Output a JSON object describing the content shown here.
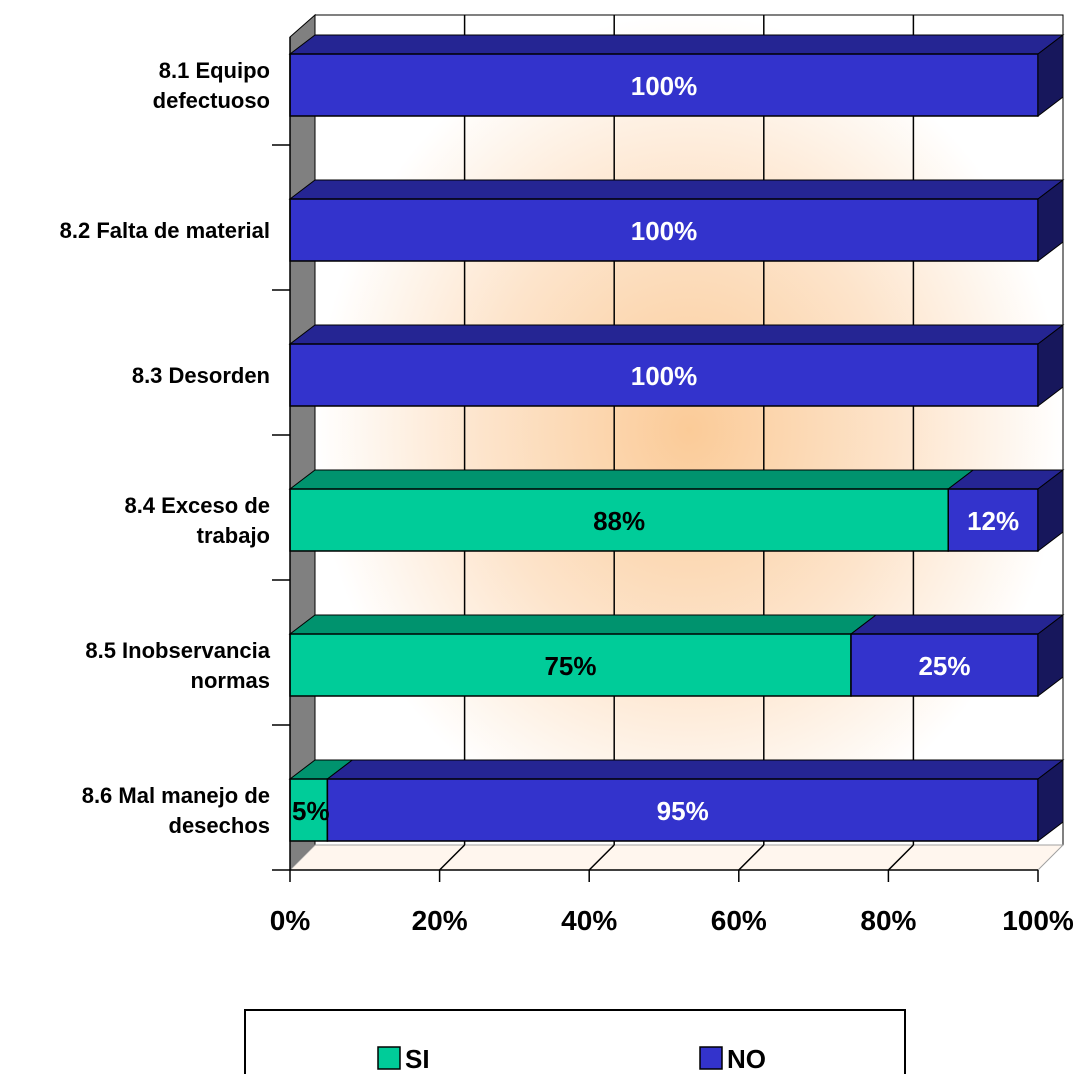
{
  "chart_data": {
    "type": "bar",
    "orientation": "horizontal",
    "stacked": "percent",
    "three_d": true,
    "categories": [
      [
        "8.1 Equipo",
        "defectuoso"
      ],
      [
        "8.2 Falta de material"
      ],
      [
        "8.3 Desorden"
      ],
      [
        "8.4 Exceso de",
        "trabajo"
      ],
      [
        "8.5 Inobservancia",
        "normas"
      ],
      [
        "8.6 Mal manejo de",
        "desechos"
      ]
    ],
    "series": [
      {
        "name": "SI",
        "values": [
          0,
          0,
          0,
          88,
          75,
          5
        ],
        "labels": [
          "",
          "",
          "",
          "88%",
          "75%",
          "5%"
        ],
        "color": "#00CC99",
        "label_color": "#000000"
      },
      {
        "name": "NO",
        "values": [
          100,
          100,
          100,
          12,
          25,
          95
        ],
        "labels": [
          "100%",
          "100%",
          "100%",
          "12%",
          "25%",
          "95%"
        ],
        "color": "#3333CC",
        "label_color": "#ffffff"
      }
    ],
    "xlim": [
      0,
      100
    ],
    "x_ticks": [
      "0%",
      "20%",
      "40%",
      "60%",
      "80%",
      "100%"
    ],
    "grid": true,
    "legend": {
      "placement": "bottom"
    }
  }
}
